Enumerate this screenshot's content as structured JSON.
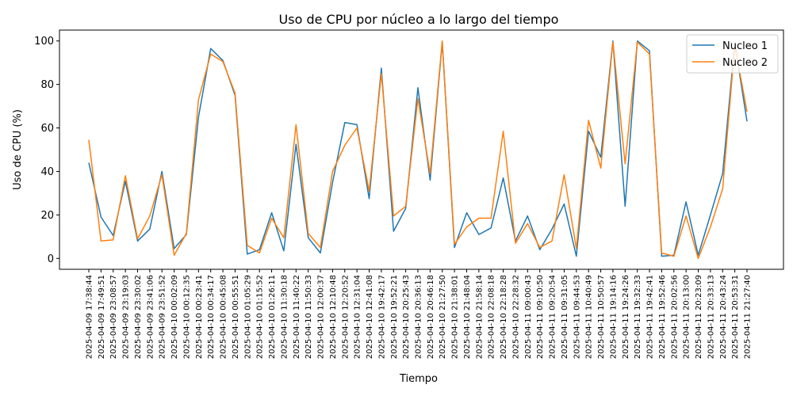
{
  "chart_data": {
    "type": "line",
    "title": "Uso de CPU por núcleo a lo largo del tiempo",
    "xlabel": "Tiempo",
    "ylabel": "Uso de CPU (%)",
    "ylim": [
      -5,
      105
    ],
    "yticks": [
      0,
      20,
      40,
      60,
      80,
      100
    ],
    "grid": false,
    "legend": "top-right",
    "x": [
      "2025-04-09 17:38:44",
      "2025-04-09 17:49:51",
      "2025-04-09 23:08:57",
      "2025-04-09 23:19:03",
      "2025-04-09 23:30:02",
      "2025-04-09 23:41:06",
      "2025-04-09 23:51:52",
      "2025-04-10 00:02:09",
      "2025-04-10 00:12:35",
      "2025-04-10 00:23:41",
      "2025-04-10 00:34:17",
      "2025-04-10 00:45:08",
      "2025-04-10 00:55:51",
      "2025-04-10 01:05:29",
      "2025-04-10 01:15:52",
      "2025-04-10 01:26:11",
      "2025-04-10 11:30:18",
      "2025-04-10 11:40:22",
      "2025-04-10 11:50:33",
      "2025-04-10 12:00:37",
      "2025-04-10 12:10:48",
      "2025-04-10 12:20:52",
      "2025-04-10 12:31:04",
      "2025-04-10 12:41:08",
      "2025-04-10 19:42:17",
      "2025-04-10 19:52:21",
      "2025-04-10 20:25:43",
      "2025-04-10 20:36:13",
      "2025-04-10 20:46:18",
      "2025-04-10 21:27:50",
      "2025-04-10 21:38:01",
      "2025-04-10 21:48:04",
      "2025-04-10 21:58:14",
      "2025-04-10 22:08:18",
      "2025-04-10 22:18:28",
      "2025-04-10 22:28:32",
      "2025-04-11 09:00:43",
      "2025-04-11 09:10:50",
      "2025-04-11 09:20:54",
      "2025-04-11 09:31:05",
      "2025-04-11 09:44:53",
      "2025-04-11 10:40:49",
      "2025-04-11 10:50:57",
      "2025-04-11 19:14:16",
      "2025-04-11 19:24:26",
      "2025-04-11 19:32:33",
      "2025-04-11 19:42:41",
      "2025-04-11 19:52:46",
      "2025-04-11 20:02:56",
      "2025-04-11 20:13:00",
      "2025-04-11 20:23:09",
      "2025-04-11 20:33:13",
      "2025-04-11 20:43:24",
      "2025-04-11 20:53:31",
      "2025-04-11 21:27:40"
    ],
    "series": [
      {
        "name": "Nucleo 1",
        "color": "#1f77b4",
        "values": [
          44,
          19,
          10.5,
          35.5,
          8,
          13.5,
          40,
          4.5,
          11,
          65,
          96.5,
          91,
          75,
          2,
          4,
          21,
          3.5,
          52.5,
          9.5,
          2.5,
          35,
          62.5,
          61.5,
          27.5,
          87.5,
          12.5,
          23,
          78.5,
          36,
          99.5,
          5,
          21,
          11,
          14,
          37,
          8,
          19.5,
          4,
          13.5,
          25,
          1,
          58.5,
          46.5,
          100,
          24,
          100,
          95.5,
          1,
          1.5,
          26,
          1.5,
          20,
          39,
          99,
          63
        ]
      },
      {
        "name": "Nucleo 2",
        "color": "#ff7f0e",
        "values": [
          54.5,
          8,
          8.5,
          38,
          9,
          19.5,
          38.5,
          1.5,
          11.5,
          73,
          94,
          90.5,
          76,
          6,
          2.5,
          18.5,
          9.5,
          61.5,
          11.5,
          5,
          40,
          52,
          60,
          31,
          85,
          19.5,
          24,
          73.5,
          39,
          100,
          6.5,
          14.5,
          18.5,
          18.5,
          58.5,
          7,
          16,
          5,
          8,
          38.5,
          4.5,
          63.5,
          41.5,
          99.5,
          43.5,
          99.5,
          94,
          2.5,
          1,
          19.5,
          0,
          14.5,
          32,
          98,
          67.5
        ]
      }
    ]
  }
}
